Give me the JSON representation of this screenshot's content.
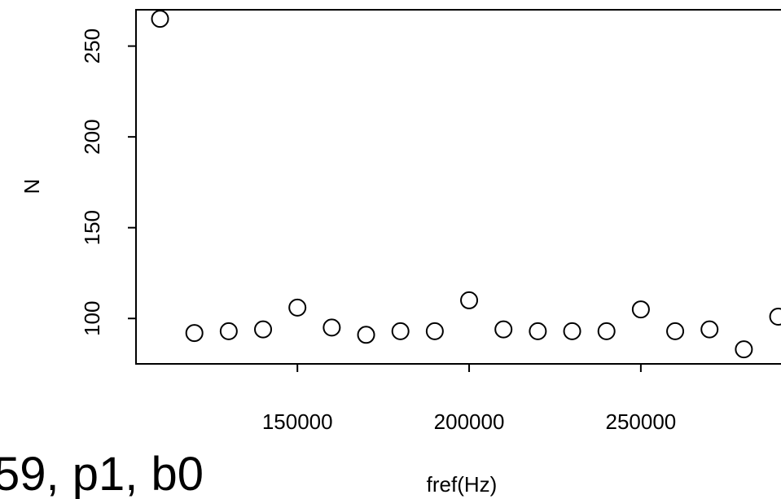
{
  "chart_data": {
    "type": "scatter",
    "title": "59, p1, b0",
    "xlabel": "fref(Hz)",
    "ylabel": "N",
    "xlim": [
      103000,
      292000
    ],
    "ylim": [
      75,
      270
    ],
    "xticks": [
      150000,
      200000,
      250000
    ],
    "xtick_labels": [
      "150000",
      "200000",
      "250000"
    ],
    "yticks": [
      100,
      150,
      200,
      250
    ],
    "ytick_labels": [
      "100",
      "150",
      "200",
      "250"
    ],
    "grid": false,
    "legend": "none",
    "marker": "open-circle",
    "series": [
      {
        "x": [
          110000,
          120000,
          130000,
          140000,
          150000,
          160000,
          170000,
          180000,
          190000,
          200000,
          210000,
          220000,
          230000,
          240000,
          250000,
          260000,
          270000,
          280000,
          290000
        ],
        "y": [
          265,
          92,
          93,
          94,
          106,
          95,
          91,
          93,
          93,
          110,
          94,
          93,
          93,
          93,
          105,
          93,
          94,
          83,
          101
        ]
      }
    ]
  }
}
